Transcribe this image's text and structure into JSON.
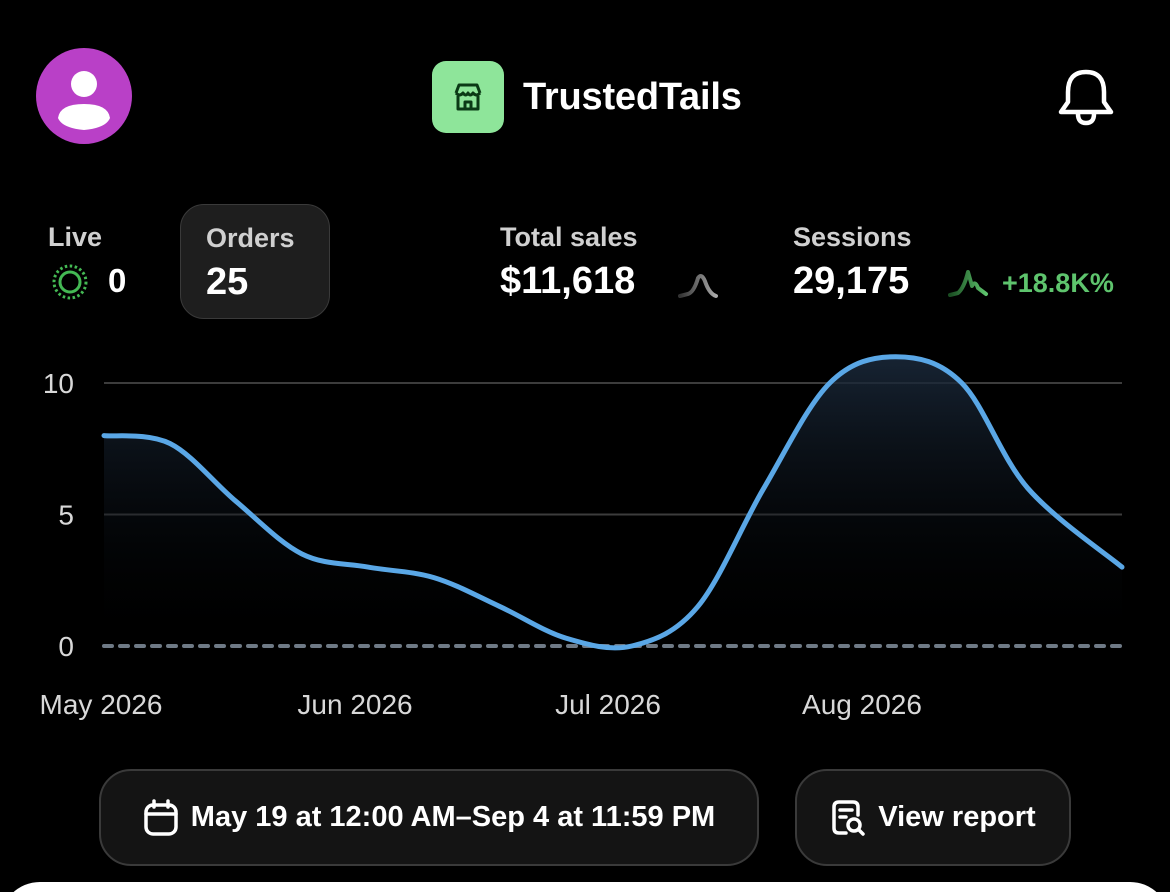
{
  "header": {
    "avatar_icon": "user-icon",
    "brand_icon": "store-icon",
    "brand_name": "TrustedTails",
    "notification_icon": "bell-icon"
  },
  "stats": {
    "live": {
      "label": "Live",
      "value": "0",
      "icon": "live-indicator-icon"
    },
    "orders": {
      "label": "Orders",
      "value": "25"
    },
    "total_sales": {
      "label": "Total sales",
      "value": "$11,618",
      "icon": "sparkline-icon"
    },
    "sessions": {
      "label": "Sessions",
      "value": "29,175",
      "icon": "sparkline-icon",
      "delta": "+18.8K%"
    }
  },
  "colors": {
    "accent_line": "#5aa7e6",
    "positive": "#5ec46d",
    "avatar_bg": "#b940c7",
    "brand_bg": "#8ee59a"
  },
  "chart_data": {
    "type": "line",
    "x_tick_labels": [
      "May 2026",
      "Jun 2026",
      "Jul 2026",
      "Aug 2026"
    ],
    "y_tick_labels": [
      "10",
      "5",
      "0"
    ],
    "ylim": [
      0,
      11
    ],
    "grid": true,
    "series": [
      {
        "x": [
          "2026-05-19",
          "2026-05-26",
          "2026-06-02",
          "2026-06-09",
          "2026-06-16",
          "2026-06-23",
          "2026-06-30",
          "2026-07-07",
          "2026-07-14",
          "2026-07-21",
          "2026-07-28",
          "2026-08-04",
          "2026-08-11",
          "2026-08-18",
          "2026-08-25",
          "2026-09-04"
        ],
        "values": [
          8,
          7.7,
          5.5,
          3.5,
          3,
          2.6,
          1.5,
          0.3,
          0,
          1.5,
          6,
          10,
          11,
          10,
          6,
          3
        ]
      }
    ]
  },
  "date_range": {
    "icon": "calendar-icon",
    "label": "May 19 at 12:00 AM–Sep 4 at 11:59 PM"
  },
  "report": {
    "icon": "report-search-icon",
    "label": "View report"
  }
}
